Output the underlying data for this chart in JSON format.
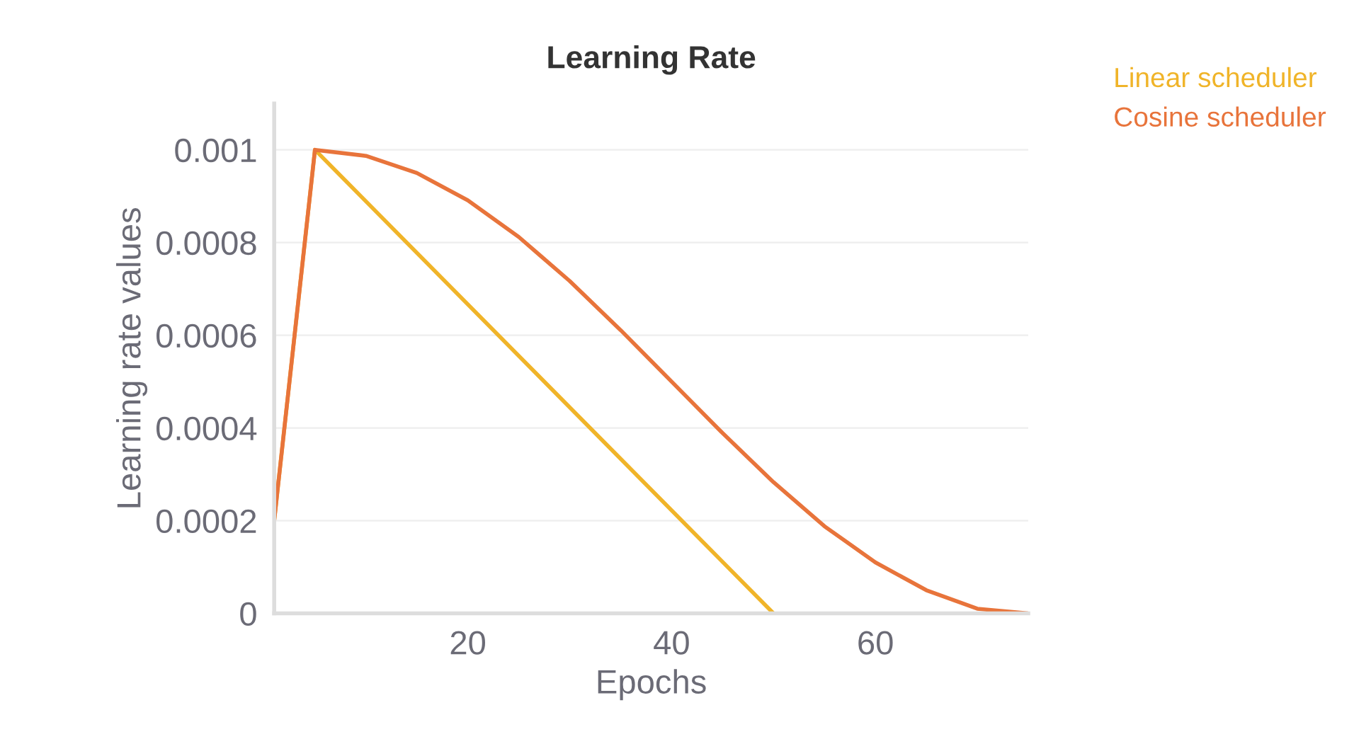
{
  "chart_data": {
    "type": "line",
    "title": "Learning Rate",
    "xlabel": "Epochs",
    "ylabel": "Learning rate values",
    "xlim": [
      1,
      75
    ],
    "xticks": [
      20,
      40,
      60
    ],
    "ylim": [
      0,
      0.0011
    ],
    "yticks": [
      0,
      0.0002,
      0.0004,
      0.0006,
      0.0008,
      0.001
    ],
    "grid": "y",
    "legend": "top right",
    "line_style": "solid",
    "series": [
      {
        "name": "Linear scheduler",
        "color": "#f0b429",
        "x": [
          1,
          5,
          50
        ],
        "values": [
          0.0002,
          0.001,
          0
        ]
      },
      {
        "name": "Cosine scheduler",
        "color": "#e8743b",
        "x": [
          1,
          5,
          10,
          15,
          20,
          25,
          30,
          35,
          40,
          45,
          50,
          55,
          60,
          65,
          70,
          75
        ],
        "values": [
          0.0002,
          0.001,
          0.000987,
          0.00095,
          0.000891,
          0.000812,
          0.000717,
          0.000611,
          0.0005,
          0.000389,
          0.000283,
          0.000188,
          0.00011,
          5e-05,
          1e-05,
          0
        ]
      }
    ]
  }
}
